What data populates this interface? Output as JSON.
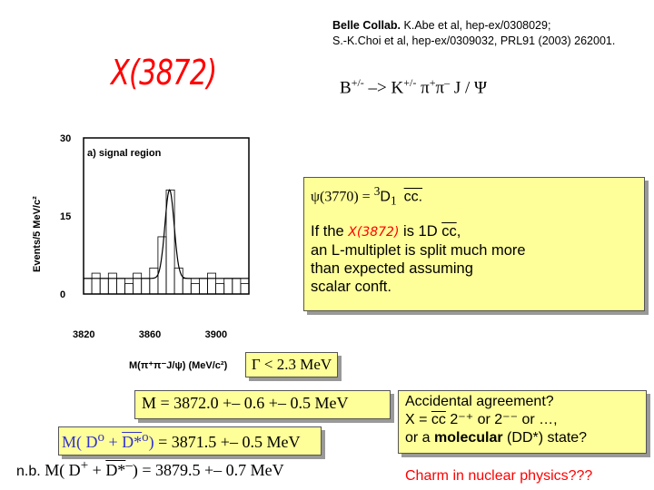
{
  "reference": {
    "line1_bold": "Belle Collab.",
    "line1_rest": " K.Abe et al, hep-ex/0308029;",
    "line2": "S.-K.Choi et al, hep-ex/0309032, PRL91 (2003) 262001."
  },
  "particle_label": "X(3872)",
  "decay": {
    "B": "B",
    "B_charge": "+/-",
    "arrow": " –> ",
    "K": "K",
    "K_charge": "+/-",
    "pi": "  π",
    "pi_plus": "+",
    "pi2": "π",
    "pi_minus": "–",
    "jpsi": " J / Ψ"
  },
  "plot": {
    "panel_label": "a) signal region",
    "y_axis_label": "Events/5 MeV/c²",
    "x_axis_label": "M(π⁺π⁻J/ψ)  (MeV/c²)",
    "y_ticks": [
      "30",
      "15",
      "0"
    ],
    "x_ticks": [
      "3820",
      "3860",
      "3900"
    ]
  },
  "chart_data": {
    "type": "bar",
    "title": "",
    "xlabel": "M(π⁺π⁻J/ψ)  (MeV/c²)",
    "ylabel": "Events/5 MeV/c²",
    "xlim": [
      3820,
      3920
    ],
    "ylim": [
      0,
      30
    ],
    "x": [
      3822.5,
      3827.5,
      3832.5,
      3837.5,
      3842.5,
      3847.5,
      3852.5,
      3857.5,
      3862.5,
      3867.5,
      3872.5,
      3877.5,
      3882.5,
      3887.5,
      3892.5,
      3897.5,
      3902.5,
      3907.5,
      3912.5,
      3917.5
    ],
    "values": [
      3,
      4,
      3,
      4,
      3,
      2,
      4,
      3,
      5,
      11,
      20,
      5,
      3,
      2,
      3,
      4,
      2,
      3,
      3,
      2
    ],
    "fit_curve": "gaussian peak at 3872 on flat background"
  },
  "psi_box": {
    "psi": "ψ(3770)  =  ",
    "state": "3",
    "D": "D",
    "sub": "1",
    "cc": "cc."
  },
  "if_text": {
    "line1_a": "If the ",
    "line1_x": "X(3872)",
    "line1_b": " is 1D ",
    "line1_cc": "cc",
    "line1_c": ",",
    "line2": "an L-multiplet is split much more",
    "line3": "than expected assuming",
    "line4": "scalar conft."
  },
  "gamma": "Γ < 2.3 MeV",
  "mass_x": "M =  3872.0 +– 0.6 +– 0.5  MeV",
  "mass_d0": {
    "label": "M( D",
    "sup1": "o",
    "plus": " + ",
    "dstar": "D*",
    "sup2": "o",
    "close": ")",
    "value": "  =  3871.5 +– 0.5  MeV"
  },
  "mass_dplus": {
    "nb": "n.b.",
    "label": " M( D",
    "sup1": "+",
    "plus": " + ",
    "dstar": "D*",
    "sup2": "–",
    "close": ")",
    "value": "  =  3879.5 +– 0.7  MeV"
  },
  "accidental": {
    "line1": "Accidental agreement?",
    "line2_a": "X = ",
    "line2_cc": "cc",
    "line2_b": " 2⁻⁺ or 2⁻⁻ or …,",
    "line3_a": "or a ",
    "line3_bold": "molecular",
    "line3_b": " (DD*) state?"
  },
  "charm_text": "Charm in nuclear physics???"
}
